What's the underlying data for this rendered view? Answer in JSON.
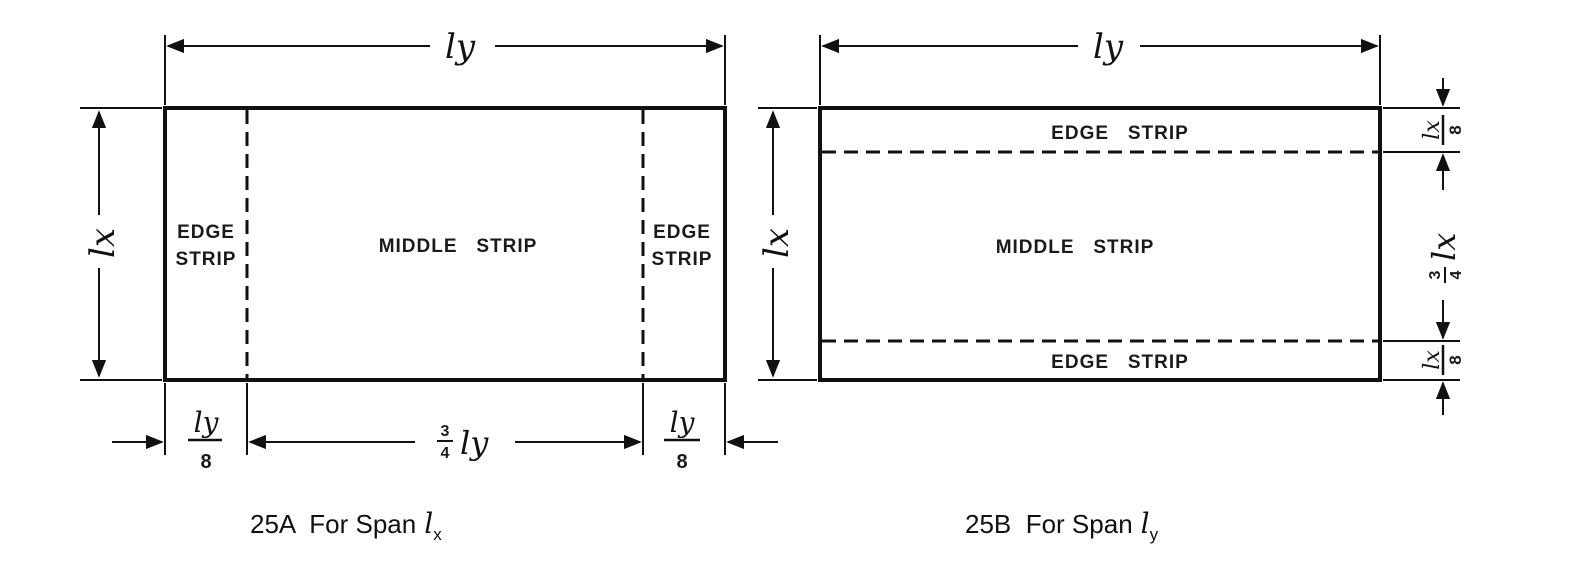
{
  "diagram_a": {
    "span_top": "ly",
    "span_side": "lx",
    "edge_strip_left": [
      "EDGE",
      "STRIP"
    ],
    "middle_strip": "MIDDLE   STRIP",
    "edge_strip_right": [
      "EDGE",
      "STRIP"
    ],
    "bottom_left": {
      "num": "ly",
      "den": "8"
    },
    "bottom_middle": {
      "frac_num": "3",
      "frac_den": "4",
      "sym": "ly"
    },
    "bottom_right": {
      "num": "ly",
      "den": "8"
    },
    "caption": "25A  For Span",
    "caption_symbol": "l",
    "caption_sub": "x"
  },
  "diagram_b": {
    "span_top": "ly",
    "span_side": "lx",
    "edge_strip_top": "EDGE   STRIP",
    "middle_strip": "MIDDLE   STRIP",
    "edge_strip_bottom": "EDGE   STRIP",
    "right_top": {
      "num": "lx",
      "den": "8"
    },
    "right_middle": {
      "frac_num": "3",
      "frac_den": "4",
      "sym": "lx"
    },
    "right_bottom": {
      "num": "lx",
      "den": "8"
    },
    "caption": "25B  For Span",
    "caption_symbol": "l",
    "caption_sub": "y"
  }
}
